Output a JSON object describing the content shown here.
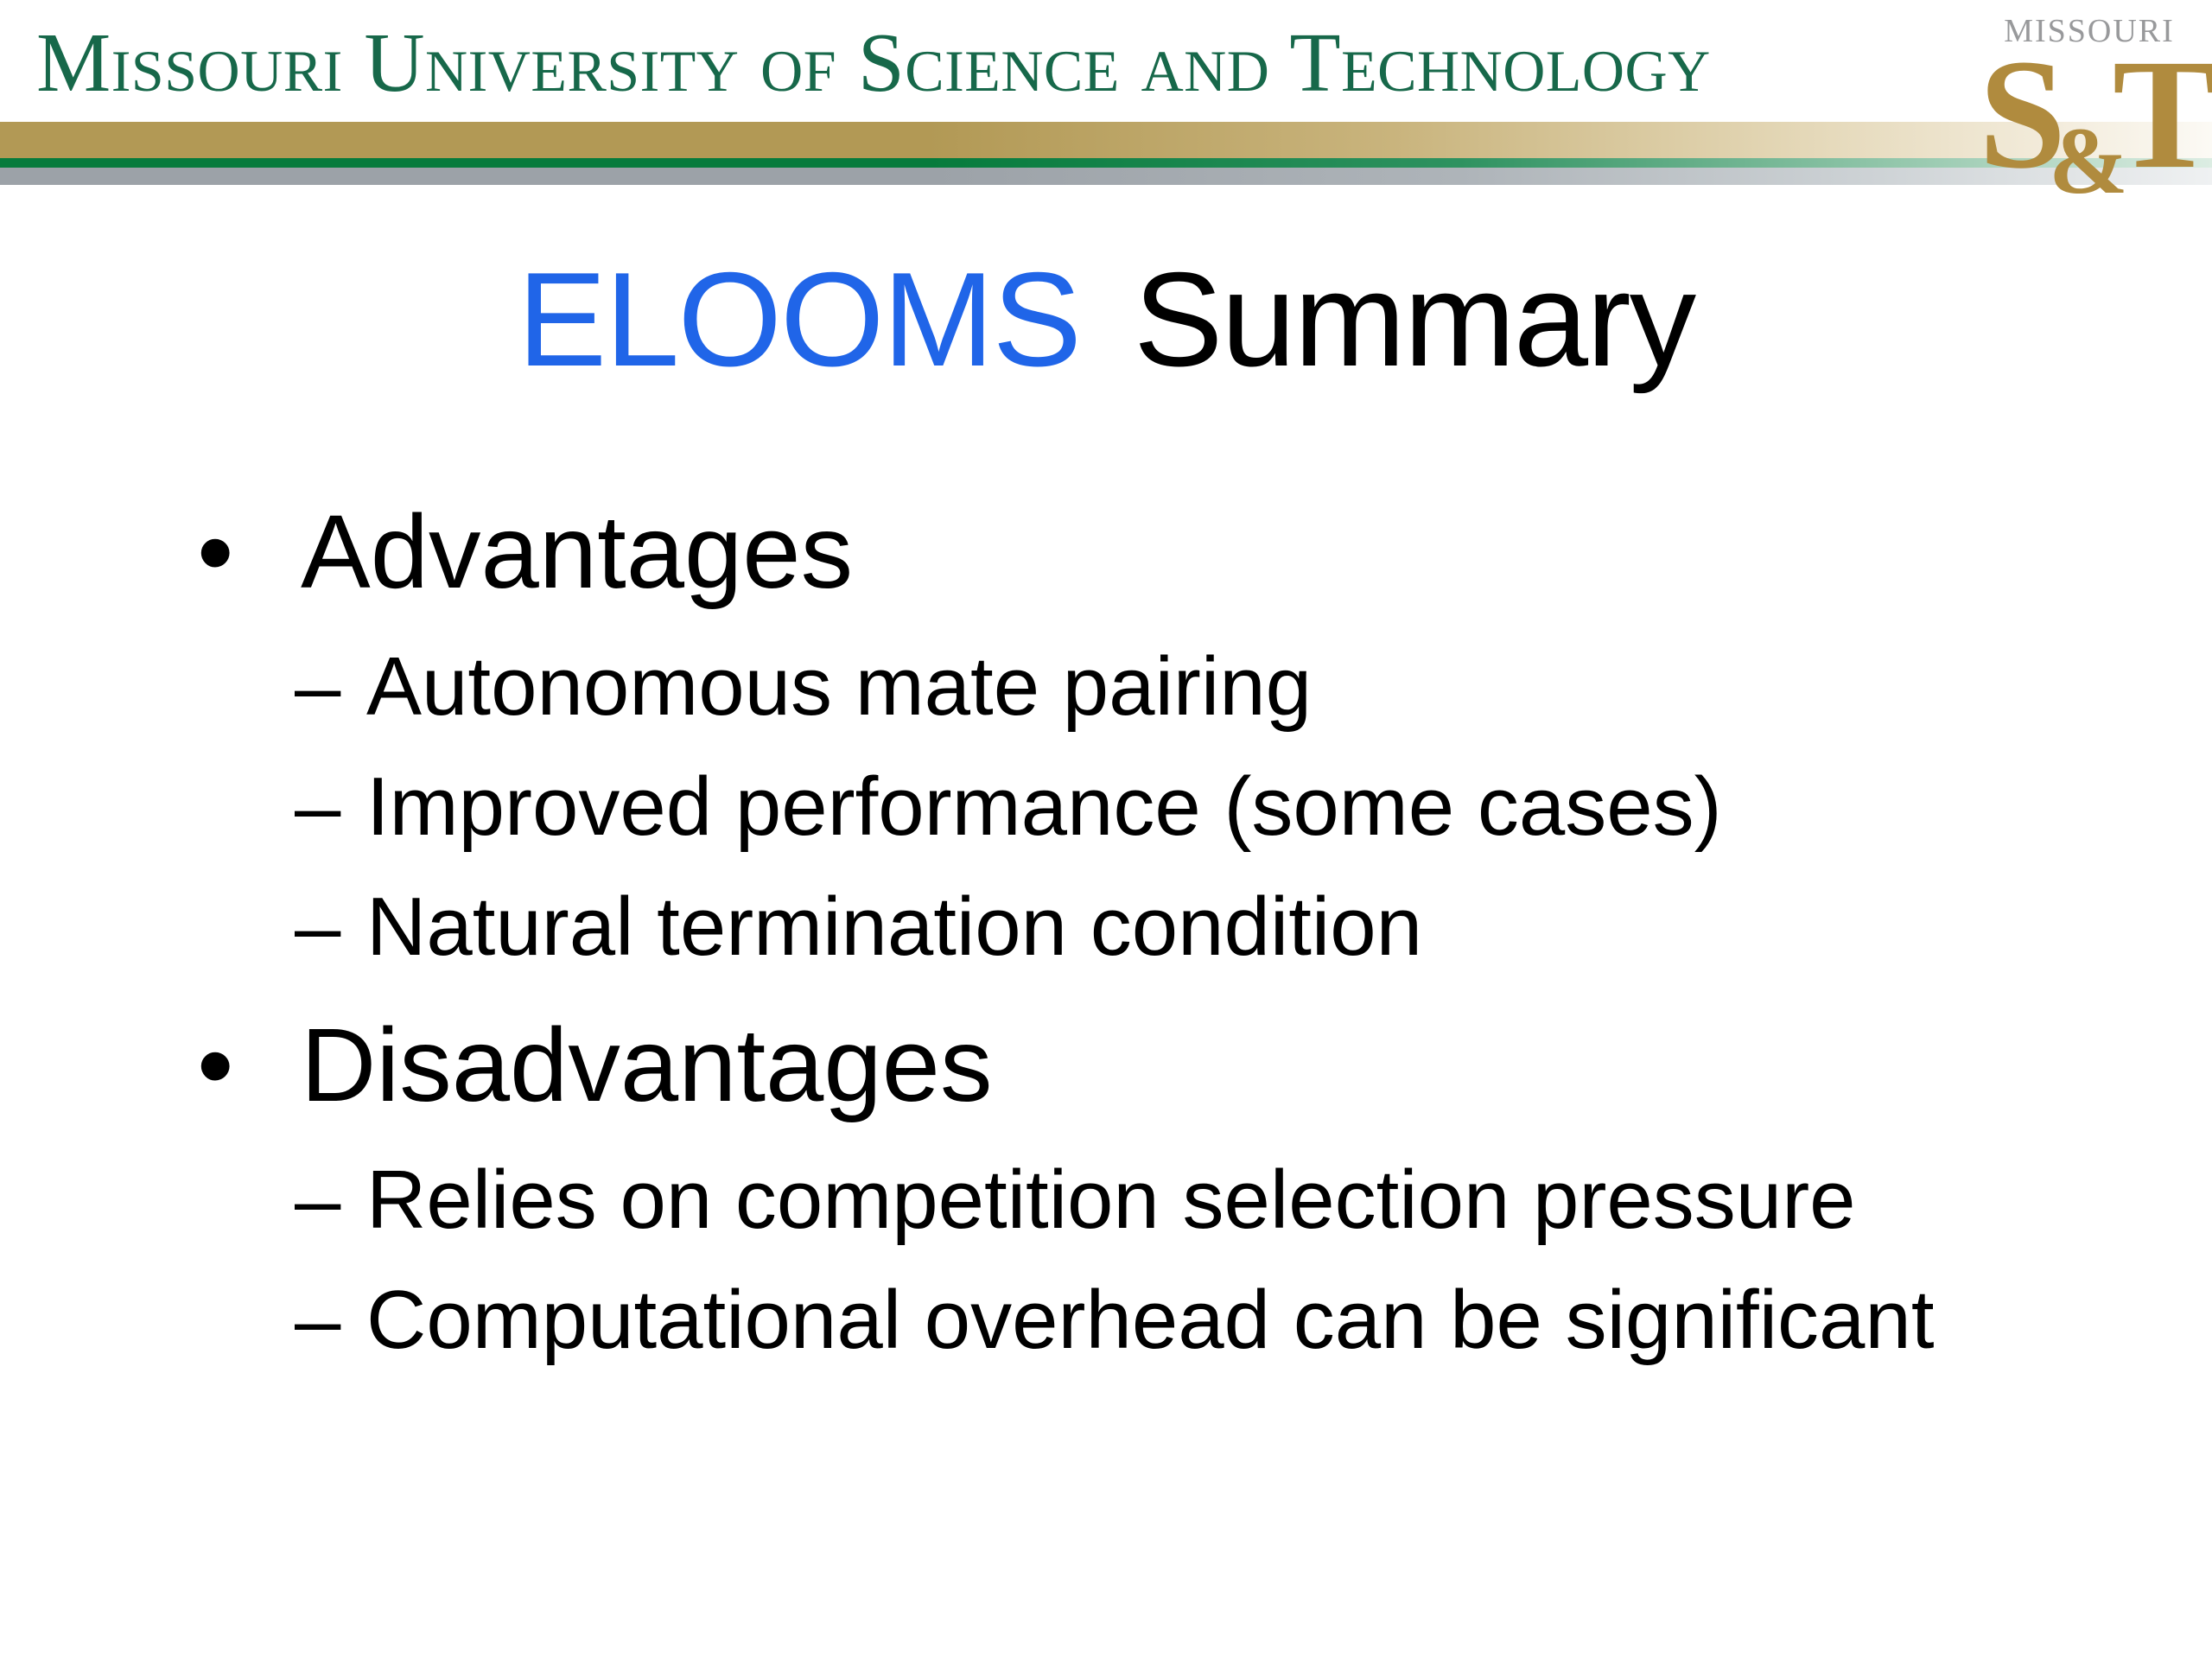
{
  "header": {
    "wordmark": "Missouri University of Science and Technology",
    "logo": {
      "line1": "Missouri",
      "s": "S",
      "ampersand": "&",
      "t": "T"
    }
  },
  "title": {
    "highlight": "ELOOMS",
    "rest": "Summary"
  },
  "list": {
    "bullet_glyph": "•",
    "dash_glyph": "–",
    "items": [
      {
        "label": "Advantages",
        "children": [
          "Autonomous mate pairing",
          "Improved performance (some cases)",
          "Natural termination condition"
        ]
      },
      {
        "label": "Disadvantages",
        "children": [
          "Relies on competition selection pressure",
          "Computational overhead can be significant"
        ]
      }
    ]
  },
  "colors": {
    "header_green": "#17684A",
    "bar_gold": "#B29955",
    "bar_green": "#067B3C",
    "bar_gray": "#9CA2A8",
    "title_blue": "#2065E8",
    "body_text": "#000000",
    "logo_gray": "#98999B",
    "logo_gold": "#B08B3E"
  }
}
